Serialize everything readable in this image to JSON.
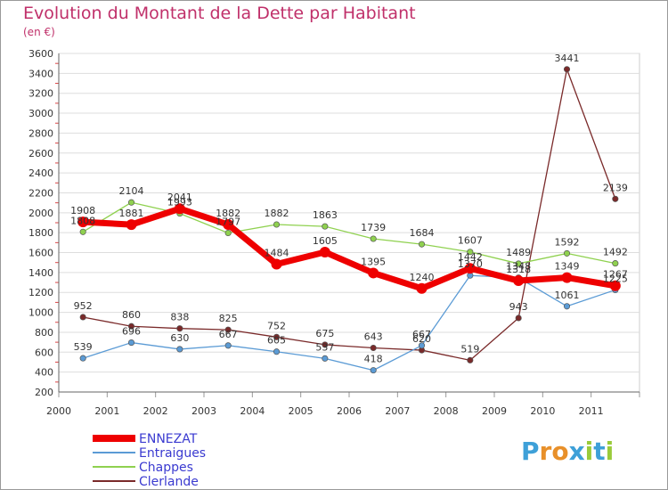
{
  "title": "Evolution du Montant de la Dette par Habitant",
  "unit": "(en €)",
  "logo": {
    "letters": [
      "P",
      "r",
      "o",
      "x",
      "i",
      "t",
      "i"
    ],
    "colors": [
      "#3ea0d8",
      "#e8902a",
      "#e8902a",
      "#3ea0d8",
      "#9acb3a",
      "#3ea0d8",
      "#9acb3a"
    ]
  },
  "chart_data": {
    "type": "line",
    "x": [
      2000,
      2001,
      2002,
      2003,
      2004,
      2005,
      2006,
      2007,
      2008,
      2009,
      2010,
      2011
    ],
    "ylim": [
      200,
      3600
    ],
    "yticks": [
      200,
      400,
      600,
      800,
      1000,
      1200,
      1400,
      1600,
      1800,
      2000,
      2200,
      2400,
      2600,
      2800,
      3000,
      3200,
      3400,
      3600
    ],
    "grid": true,
    "legend_position": "bottom-left",
    "series": [
      {
        "name": "ENNEZAT",
        "color": "#ee0000",
        "values": [
          1908,
          1881,
          2041,
          1882,
          1484,
          1605,
          1395,
          1240,
          1442,
          1318,
          1349,
          1267
        ]
      },
      {
        "name": "Entraigues",
        "color": "#5b9bd5",
        "values": [
          539,
          696,
          630,
          667,
          605,
          537,
          418,
          667,
          1370,
          1348,
          1061,
          1225
        ]
      },
      {
        "name": "Chappes",
        "color": "#8fd14f",
        "values": [
          1808,
          2104,
          1993,
          1797,
          1882,
          1863,
          1739,
          1684,
          1607,
          1489,
          1592,
          1492
        ]
      },
      {
        "name": "Clerlande",
        "color": "#7a2a2a",
        "values": [
          952,
          860,
          838,
          825,
          752,
          675,
          643,
          620,
          519,
          943,
          3441,
          2139
        ]
      }
    ]
  }
}
